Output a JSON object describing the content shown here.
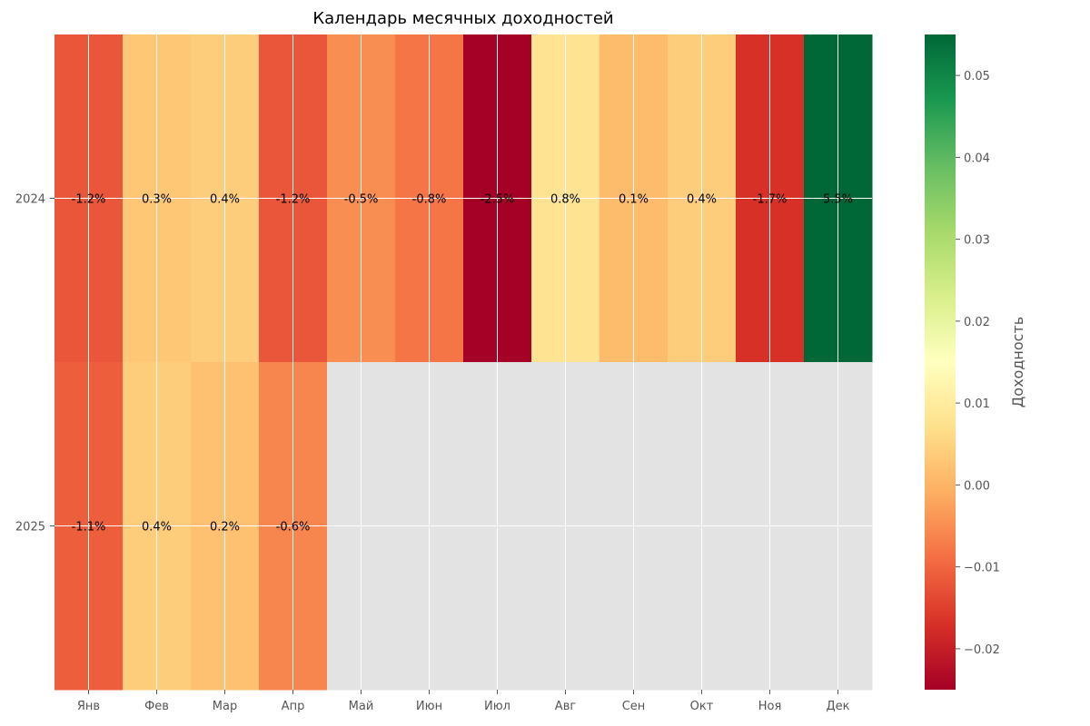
{
  "chart_data": {
    "type": "heatmap",
    "title": "Календарь месячных доходностей",
    "months": [
      "Янв",
      "Фев",
      "Мар",
      "Апр",
      "Май",
      "Июн",
      "Июл",
      "Авг",
      "Сен",
      "Окт",
      "Ноя",
      "Дек"
    ],
    "years": [
      "2024",
      "2025"
    ],
    "values": [
      [
        -0.012,
        0.003,
        0.004,
        -0.012,
        -0.005,
        -0.008,
        -0.025,
        0.008,
        0.001,
        0.004,
        -0.017,
        0.055
      ],
      [
        -0.011,
        0.004,
        0.002,
        -0.006,
        null,
        null,
        null,
        null,
        null,
        null,
        null,
        null
      ]
    ],
    "cell_labels": [
      [
        "-1.2%",
        "0.3%",
        "0.4%",
        "-1.2%",
        "-0.5%",
        "-0.8%",
        "-2.5%",
        "0.8%",
        "0.1%",
        "0.4%",
        "-1.7%",
        "5.5%"
      ],
      [
        "-1.1%",
        "0.4%",
        "0.2%",
        "-0.6%",
        "",
        "",
        "",
        "",
        "",
        "",
        "",
        ""
      ]
    ],
    "colorbar": {
      "label": "Доходность",
      "vmin": -0.025,
      "vmax": 0.055,
      "ticks": [
        -0.02,
        -0.01,
        0.0,
        0.01,
        0.02,
        0.03,
        0.04,
        0.05
      ],
      "tick_labels": [
        "−0.02",
        "−0.01",
        "0.00",
        "0.01",
        "0.02",
        "0.03",
        "0.04",
        "0.05"
      ],
      "colormap": "RdYlGn"
    },
    "missing_color": "#e3e3e3",
    "grid": true
  }
}
